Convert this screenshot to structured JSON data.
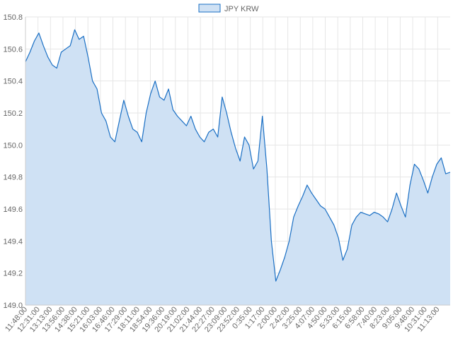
{
  "chart_data": {
    "type": "area",
    "legend": {
      "position": "top",
      "entries": [
        {
          "label": "JPY KRW"
        }
      ]
    },
    "series": [
      {
        "name": "JPY KRW",
        "color": "#1a6fc4",
        "fill": "#cfe1f4",
        "x": [
          "11:48:00",
          "12:05:00",
          "12:20:00",
          "12:35:00",
          "12:50:00",
          "13:05:00",
          "13:20:00",
          "13:35:00",
          "13:50:00",
          "14:05:00",
          "14:20:00",
          "14:35:00",
          "14:50:00",
          "15:05:00",
          "15:20:00",
          "15:35:00",
          "15:50:00",
          "16:05:00",
          "16:20:00",
          "16:35:00",
          "16:50:00",
          "17:05:00",
          "17:20:00",
          "17:35:00",
          "17:50:00",
          "18:05:00",
          "18:20:00",
          "18:35:00",
          "18:50:00",
          "19:05:00",
          "19:20:00",
          "19:35:00",
          "19:50:00",
          "20:05:00",
          "20:20:00",
          "20:35:00",
          "20:50:00",
          "21:05:00",
          "21:20:00",
          "21:35:00",
          "21:50:00",
          "22:05:00",
          "22:20:00",
          "22:35:00",
          "22:50:00",
          "23:05:00",
          "23:20:00",
          "23:35:00",
          "23:50:00",
          "0:05:00",
          "0:20:00",
          "0:35:00",
          "0:50:00",
          "1:05:00",
          "1:20:00",
          "1:35:00",
          "1:50:00",
          "2:05:00",
          "2:20:00",
          "2:35:00",
          "2:50:00",
          "3:05:00",
          "3:20:00",
          "3:35:00",
          "3:50:00",
          "4:05:00",
          "4:20:00",
          "4:35:00",
          "4:50:00",
          "5:05:00",
          "5:20:00",
          "5:35:00",
          "5:50:00",
          "6:05:00",
          "6:20:00",
          "6:35:00",
          "6:50:00",
          "7:05:00",
          "7:20:00",
          "7:35:00",
          "7:50:00",
          "8:05:00",
          "8:20:00",
          "8:35:00",
          "8:50:00",
          "9:05:00",
          "9:20:00",
          "9:35:00",
          "9:50:00",
          "10:05:00",
          "10:20:00",
          "10:35:00",
          "10:50:00",
          "11:05:00",
          "11:20:00",
          "11:35:00"
        ],
        "values": [
          150.52,
          150.58,
          150.65,
          150.7,
          150.62,
          150.55,
          150.5,
          150.48,
          150.58,
          150.6,
          150.62,
          150.72,
          150.66,
          150.68,
          150.55,
          150.4,
          150.35,
          150.2,
          150.15,
          150.05,
          150.02,
          150.15,
          150.28,
          150.18,
          150.1,
          150.08,
          150.02,
          150.2,
          150.32,
          150.4,
          150.3,
          150.28,
          150.35,
          150.22,
          150.18,
          150.15,
          150.12,
          150.18,
          150.1,
          150.05,
          150.02,
          150.08,
          150.1,
          150.05,
          150.3,
          150.2,
          150.08,
          149.98,
          149.9,
          150.05,
          150.0,
          149.85,
          149.9,
          150.18,
          149.85,
          149.4,
          149.15,
          149.22,
          149.3,
          149.4,
          149.55,
          149.62,
          149.68,
          149.75,
          149.7,
          149.66,
          149.62,
          149.6,
          149.55,
          149.5,
          149.42,
          149.28,
          149.35,
          149.5,
          149.55,
          149.58,
          149.57,
          149.56,
          149.58,
          149.57,
          149.55,
          149.52,
          149.6,
          149.7,
          149.62,
          149.55,
          149.75,
          149.88,
          149.85,
          149.78,
          149.7,
          149.8,
          149.88,
          149.92,
          149.82,
          149.83
        ]
      }
    ],
    "x_tick_labels": [
      "11:48:00",
      "12:31:00",
      "13:13:00",
      "13:56:00",
      "14:38:00",
      "15:21:00",
      "16:03:00",
      "16:46:00",
      "17:29:00",
      "18:11:00",
      "18:54:00",
      "19:36:00",
      "20:19:00",
      "21:02:00",
      "21:44:00",
      "22:27:00",
      "23:09:00",
      "23:52:00",
      "0:35:00",
      "1:17:00",
      "2:00:00",
      "2:42:00",
      "3:25:00",
      "4:07:00",
      "4:50:00",
      "5:33:00",
      "6:15:00",
      "6:58:00",
      "7:40:00",
      "8:23:00",
      "9:05:00",
      "9:48:00",
      "10:31:00",
      "11:13:00"
    ],
    "y_tick_labels": [
      "149.0",
      "149.2",
      "149.4",
      "149.6",
      "149.8",
      "150.0",
      "150.2",
      "150.4",
      "150.6",
      "150.8"
    ],
    "ylim": [
      149.0,
      150.8
    ],
    "grid": true
  }
}
